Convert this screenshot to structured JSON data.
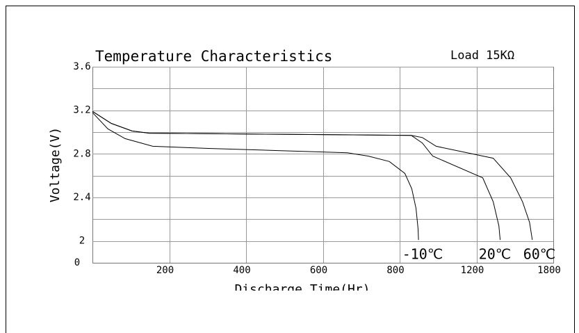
{
  "chart_data": {
    "type": "line",
    "title": "Temperature Characteristics",
    "subtitle": "Load 15KΩ",
    "ylabel": "Voltage(V)",
    "xlabel": "Discharge Time(Hr)",
    "y_origin_label": "0",
    "xlim": [
      0,
      1800
    ],
    "xticks": [
      200,
      400,
      600,
      800,
      1200,
      1800
    ],
    "ylim": [
      1.8,
      3.6
    ],
    "yticks": [
      2.0,
      2.4,
      2.8,
      3.2,
      3.6
    ],
    "ygrid": [
      2.0,
      2.2,
      2.4,
      2.6,
      2.8,
      3.0,
      3.2,
      3.4
    ],
    "grid": true,
    "series": [
      {
        "name": "-10℃",
        "color": "#000000",
        "x": [
          0,
          40,
          85,
          157,
          302,
          483,
          664,
          718,
          773,
          827,
          863,
          885,
          896,
          898
        ],
        "values": [
          3.18,
          3.03,
          2.94,
          2.87,
          2.85,
          2.83,
          2.81,
          2.78,
          2.73,
          2.62,
          2.48,
          2.3,
          2.11,
          2.01
        ]
      },
      {
        "name": "20℃",
        "color": "#000000",
        "x": [
          0,
          49,
          103,
          148,
          483,
          860,
          918,
          972,
          1249,
          1331,
          1375,
          1385
        ],
        "values": [
          3.19,
          3.08,
          3.01,
          2.99,
          2.98,
          2.97,
          2.9,
          2.78,
          2.58,
          2.36,
          2.14,
          2.01
        ]
      },
      {
        "name": "60℃",
        "color": "#000000",
        "x": [
          0,
          49,
          103,
          148,
          483,
          860,
          918,
          990,
          1331,
          1467,
          1560,
          1615,
          1636
        ],
        "values": [
          3.19,
          3.08,
          3.01,
          2.99,
          2.98,
          2.97,
          2.95,
          2.87,
          2.76,
          2.58,
          2.36,
          2.17,
          2.01
        ]
      }
    ]
  }
}
